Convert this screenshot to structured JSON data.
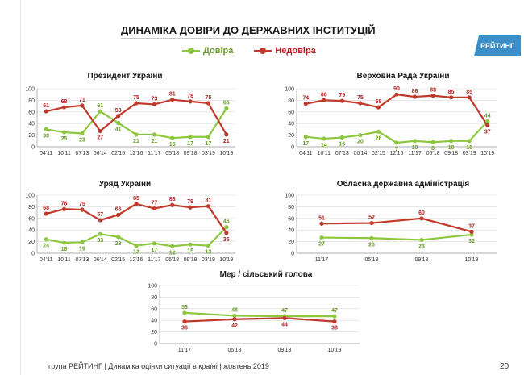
{
  "title": "ДИНАМІКА ДОВІРИ ДО ДЕРЖАВНИХ ІНСТИТУЦІЙ",
  "logo_text": "РЕЙТИНГ",
  "legend": {
    "trust": "Довіра",
    "distrust": "Недовіра"
  },
  "colors": {
    "trust": "#8dc63f",
    "distrust": "#c0392b",
    "trust_label": "#6a9e2a",
    "distrust_label": "#b22222",
    "grid": "#d9d9d9",
    "axis": "#999999"
  },
  "footer": "група РЕЙТИНГ | Динаміка оцінки ситуації в країні | жовтень 2019",
  "page_number": "20",
  "chart_data": [
    {
      "type": "line",
      "title": "Президент України",
      "categories": [
        "04'11",
        "10'11",
        "07'13",
        "06'14",
        "02'15",
        "12'16",
        "11'17",
        "05'18",
        "09'18",
        "03'19",
        "10'19"
      ],
      "yticks": [
        "0",
        "20",
        "40",
        "60",
        "80",
        "100"
      ],
      "ylim": [
        0,
        100
      ],
      "series": [
        {
          "name": "Довіра",
          "values": [
            30,
            25,
            23,
            61,
            41,
            21,
            21,
            15,
            17,
            17,
            66
          ]
        },
        {
          "name": "Недовіра",
          "values": [
            61,
            68,
            71,
            27,
            53,
            75,
            73,
            81,
            78,
            75,
            21
          ]
        }
      ]
    },
    {
      "type": "line",
      "title": "Верховна Рада України",
      "categories": [
        "04'11",
        "10'11",
        "07'13",
        "06'14",
        "02'15",
        "12'16",
        "11'17",
        "05'18",
        "09'18",
        "03'19",
        "10'19"
      ],
      "yticks": [
        "0",
        "20",
        "40",
        "60",
        "80",
        "100"
      ],
      "ylim": [
        0,
        100
      ],
      "series": [
        {
          "name": "Довіра",
          "values": [
            17,
            14,
            16,
            20,
            26,
            7,
            10,
            8,
            10,
            10,
            44
          ]
        },
        {
          "name": "Недовіра",
          "values": [
            74,
            80,
            79,
            75,
            68,
            90,
            86,
            88,
            85,
            85,
            37
          ]
        }
      ]
    },
    {
      "type": "line",
      "title": "Уряд України",
      "categories": [
        "04'11",
        "10'11",
        "07'13",
        "06'14",
        "02'15",
        "12'16",
        "11'17",
        "05'18",
        "09'18",
        "03'19",
        "10'19"
      ],
      "yticks": [
        "0",
        "20",
        "40",
        "60",
        "80",
        "100"
      ],
      "ylim": [
        0,
        100
      ],
      "series": [
        {
          "name": "Довіра",
          "values": [
            24,
            18,
            19,
            33,
            28,
            13,
            17,
            12,
            15,
            13,
            45
          ]
        },
        {
          "name": "Недовіра",
          "values": [
            68,
            76,
            75,
            57,
            66,
            85,
            77,
            83,
            79,
            81,
            35
          ]
        }
      ]
    },
    {
      "type": "line",
      "title": "Обласна державна адміністрація",
      "categories": [
        "11'17",
        "05'18",
        "09'18",
        "10'19"
      ],
      "yticks": [
        "0",
        "20",
        "40",
        "60",
        "80",
        "100"
      ],
      "ylim": [
        0,
        100
      ],
      "series": [
        {
          "name": "Довіра",
          "values": [
            27,
            26,
            23,
            32
          ]
        },
        {
          "name": "Недовіра",
          "values": [
            51,
            52,
            60,
            37
          ]
        }
      ]
    },
    {
      "type": "line",
      "title": "Мер / сільський голова",
      "categories": [
        "11'17",
        "05'18",
        "09'18",
        "10'19"
      ],
      "yticks": [
        "0",
        "20",
        "40",
        "60",
        "80",
        "100"
      ],
      "ylim": [
        0,
        100
      ],
      "series": [
        {
          "name": "Довіра",
          "values": [
            53,
            48,
            47,
            47
          ]
        },
        {
          "name": "Недовіра",
          "values": [
            38,
            42,
            44,
            38
          ]
        }
      ]
    }
  ]
}
